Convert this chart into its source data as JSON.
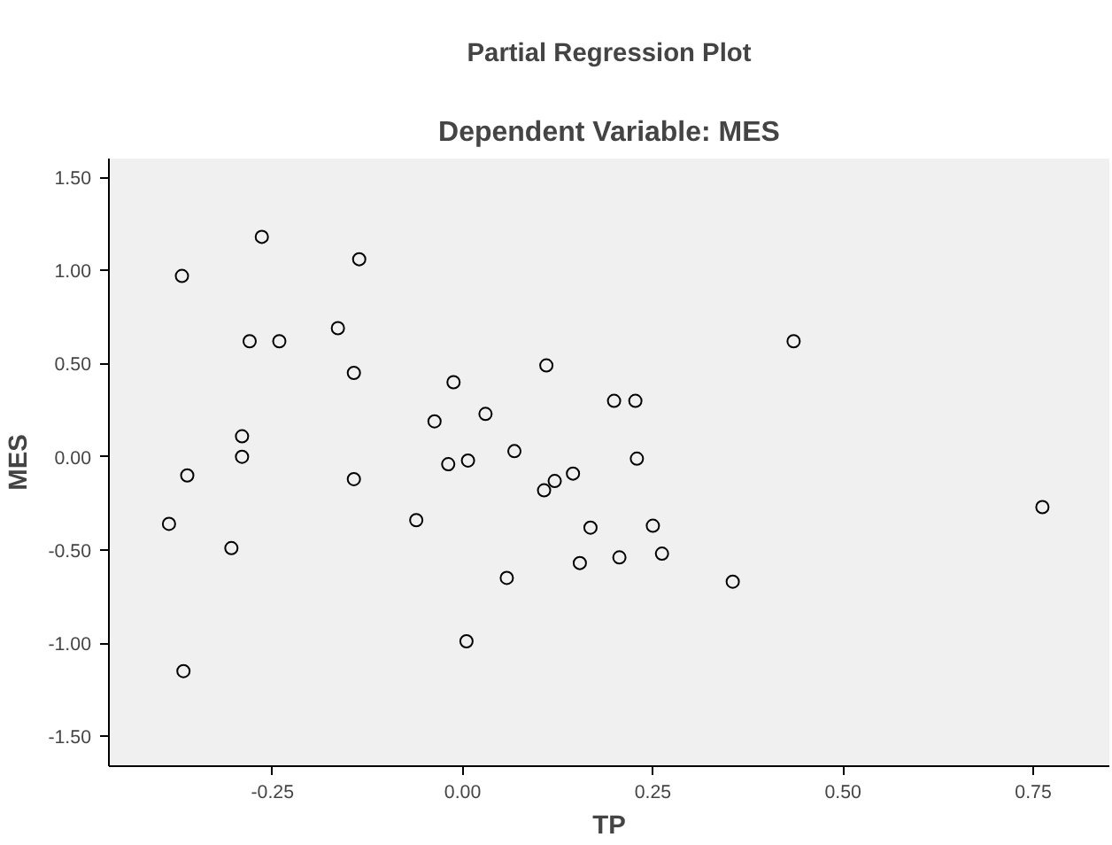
{
  "chart_data": {
    "type": "scatter",
    "title": "Partial Regression Plot",
    "subtitle": "Dependent Variable: MES",
    "xlabel": "TP",
    "ylabel": "MES",
    "x": [
      -0.264,
      -0.369,
      -0.136,
      -0.28,
      -0.241,
      -0.164,
      -0.143,
      -0.012,
      0.11,
      0.435,
      -0.29,
      -0.29,
      -0.362,
      -0.037,
      0.03,
      0.199,
      0.227,
      -0.019,
      0.007,
      0.068,
      0.229,
      -0.143,
      -0.386,
      -0.061,
      0.107,
      0.121,
      0.145,
      0.168,
      0.25,
      -0.304,
      0.206,
      0.262,
      0.154,
      0.058,
      0.355,
      0.762,
      -0.367,
      0.005
    ],
    "values": [
      1.18,
      0.97,
      1.06,
      0.62,
      0.62,
      0.69,
      0.45,
      0.4,
      0.49,
      0.62,
      0.11,
      0.0,
      -0.1,
      0.19,
      0.23,
      0.3,
      0.3,
      -0.04,
      -0.02,
      0.03,
      -0.01,
      -0.12,
      -0.36,
      -0.34,
      -0.18,
      -0.13,
      -0.09,
      -0.38,
      -0.37,
      -0.49,
      -0.54,
      -0.52,
      -0.57,
      -0.65,
      -0.67,
      -0.27,
      -1.15,
      -0.99
    ],
    "color": "#000000",
    "marker": "circle",
    "grid": false,
    "xlim": [
      -0.465,
      0.85
    ],
    "ylim": [
      -1.66,
      1.6
    ],
    "xticks": [
      {
        "value": -0.25,
        "label": "-0.25"
      },
      {
        "value": 0,
        "label": "0.00"
      },
      {
        "value": 0.25,
        "label": "0.25"
      },
      {
        "value": 0.5,
        "label": "0.50"
      },
      {
        "value": 0.75,
        "label": "0.75"
      }
    ],
    "yticks": [
      {
        "value": -1.5,
        "label": "-1.50"
      },
      {
        "value": -1,
        "label": "-1.00"
      },
      {
        "value": -0.5,
        "label": "-0.50"
      },
      {
        "value": 0,
        "label": "0.00"
      },
      {
        "value": 0.5,
        "label": "0.50"
      },
      {
        "value": 1,
        "label": "1.00"
      },
      {
        "value": 1.5,
        "label": "1.50"
      }
    ]
  }
}
